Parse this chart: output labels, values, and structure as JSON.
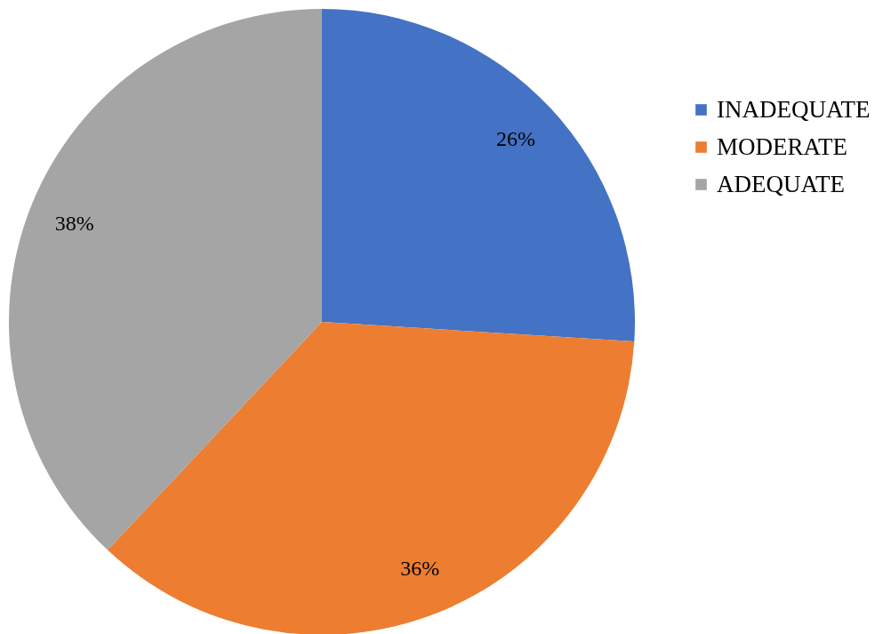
{
  "chart_data": {
    "type": "pie",
    "categories": [
      "INADEQUATE",
      "MODERATE",
      "ADEQUATE"
    ],
    "values": [
      26,
      36,
      38
    ],
    "colors": [
      "#4472c4",
      "#ed7d31",
      "#a5a5a5"
    ],
    "value_labels": [
      "26%",
      "36%",
      "38%"
    ],
    "legend": "top right"
  }
}
